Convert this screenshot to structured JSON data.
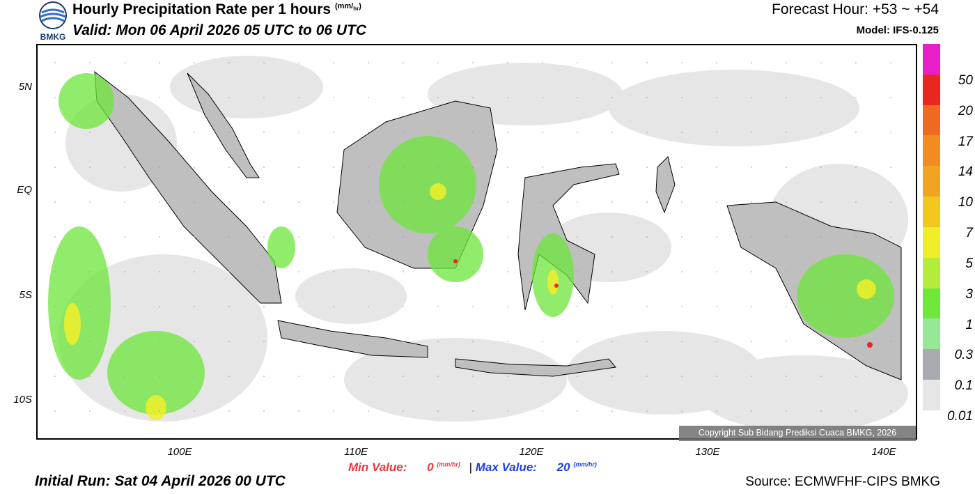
{
  "header": {
    "title": "Hourly Precipitation Rate per 1 hours",
    "unit_num": "mm",
    "unit_den": "hr",
    "valid": "Valid: Mon 06 April 2026 05 UTC to 06 UTC",
    "forecast_hour": "Forecast Hour: +53 ~ +54",
    "model": "Model: IFS-0.125",
    "logo_text": "BMKG"
  },
  "map": {
    "lat_ticks": [
      "5N",
      "EQ",
      "5S",
      "10S"
    ],
    "lon_ticks": [
      "100E",
      "110E",
      "120E",
      "130E",
      "140E"
    ],
    "copyright": "Copyright Sub Bidang Prediksi Cuaca BMKG, 2026",
    "land_color": "#bfbfbf",
    "border_color": "#000000"
  },
  "colorbar": {
    "labels": [
      "50",
      "20",
      "17",
      "14",
      "10",
      "7",
      "5",
      "3",
      "1",
      "0.3",
      "0.1",
      "0.01"
    ],
    "colors": [
      "#e81ec8",
      "#e8281e",
      "#ee6a20",
      "#f08c20",
      "#f0a520",
      "#f0c81e",
      "#f0ee28",
      "#b4ec3c",
      "#6ee63a",
      "#96e896",
      "#a8aab0",
      "#e6e6e6"
    ]
  },
  "footer": {
    "min_label": "Min Value:",
    "min_value": "0",
    "max_label": "Max Value:",
    "max_value": "20",
    "unit_num": "mm",
    "unit_den": "hr",
    "separator": "|",
    "initial_run": "Initial Run: Sat 04 April 2026 00 UTC",
    "source": "Source: ECMWFHF-CIPS BMKG"
  }
}
